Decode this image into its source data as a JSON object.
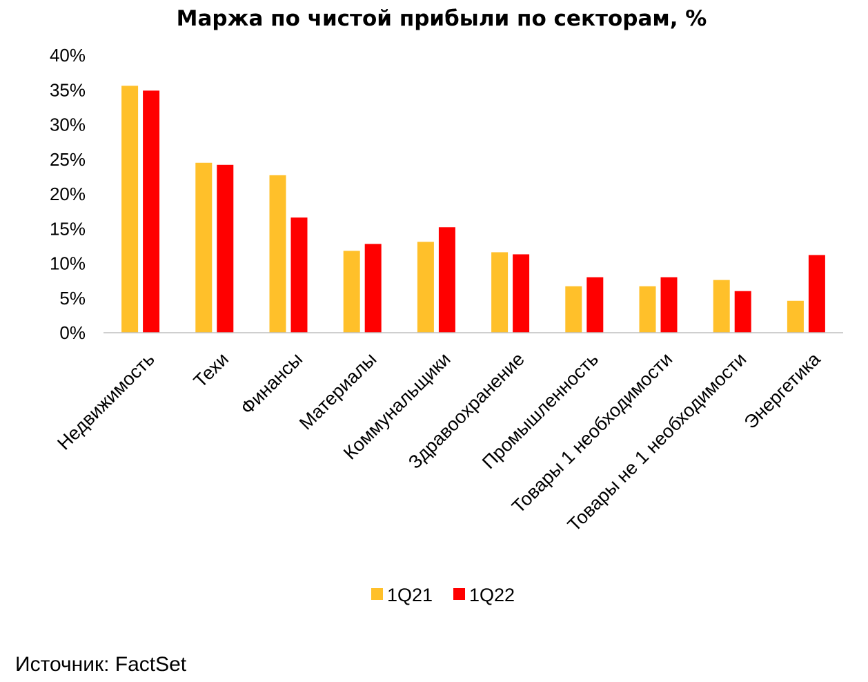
{
  "chart_data": {
    "type": "bar",
    "title": "Маржа по чистой прибыли по секторам, %",
    "xlabel": "",
    "ylabel": "",
    "ylim": [
      0,
      40
    ],
    "yticks": [
      "0%",
      "5%",
      "10%",
      "15%",
      "20%",
      "25%",
      "30%",
      "35%",
      "40%"
    ],
    "grid": false,
    "legend_position": "bottom",
    "categories": [
      "Недвижимость",
      "Техи",
      "Финансы",
      "Материалы",
      "Коммунальщики",
      "Здравоохранение",
      "Промышленность",
      "Товары 1 необходимости",
      "Товары не 1 необходимости",
      "Энергетика"
    ],
    "series": [
      {
        "name": "1Q21",
        "color": "#FFC02A",
        "values": [
          35.6,
          24.5,
          22.7,
          11.8,
          13.1,
          11.6,
          6.7,
          6.7,
          7.6,
          4.6
        ]
      },
      {
        "name": "1Q22",
        "color": "#FF0000",
        "values": [
          34.9,
          24.2,
          16.6,
          12.8,
          15.2,
          11.3,
          8.0,
          8.0,
          6.0,
          11.2
        ]
      }
    ]
  },
  "footer": {
    "source": "Источник: FactSet"
  }
}
